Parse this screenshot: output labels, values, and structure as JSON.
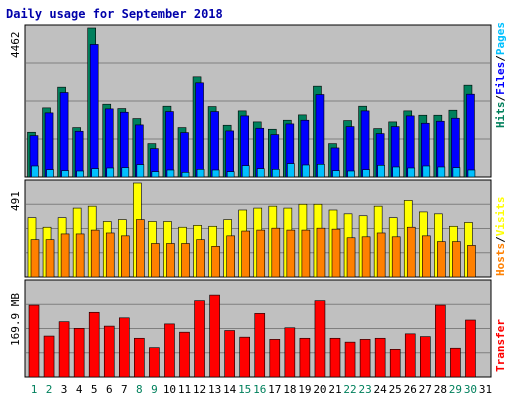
{
  "page_title": "Daily usage for September 2018",
  "labels": {
    "top_max": "4462",
    "mid_max": "491",
    "bot_max": "169.9 MB",
    "right_hits": "Hits",
    "right_files": "Files",
    "right_pages": "Pages",
    "right_sep": "/",
    "right_hosts": "Hosts",
    "right_visits": "Visits",
    "right_transfer": "Transfer"
  },
  "colors": {
    "hits": "#00805c",
    "files": "#0000ff",
    "pages": "#00c0ff",
    "visits": "#ffff00",
    "hosts": "#ff8000",
    "transfer": "#ff0000",
    "weekday": "#000000",
    "weekend": "#00805c",
    "panel_bg": "#c0c0c0",
    "title": "#0000aa"
  },
  "chart_data": [
    {
      "type": "bar",
      "title": "Daily usage for September 2018",
      "categories": [
        "1",
        "2",
        "3",
        "4",
        "5",
        "6",
        "7",
        "8",
        "9",
        "10",
        "11",
        "12",
        "13",
        "14",
        "15",
        "16",
        "17",
        "18",
        "19",
        "20",
        "21",
        "22",
        "23",
        "24",
        "25",
        "26",
        "27",
        "28",
        "29",
        "30",
        "31"
      ],
      "weekend_days": [
        1,
        2,
        8,
        9,
        15,
        16,
        22,
        23,
        29,
        30
      ],
      "ylim": [
        0,
        4462
      ],
      "series": [
        {
          "name": "Hits",
          "values": [
            1340,
            2070,
            2690,
            1480,
            4462,
            2180,
            2050,
            1750,
            1000,
            2120,
            1480,
            3000,
            2110,
            1550,
            1980,
            1650,
            1430,
            1700,
            1860,
            2720,
            1000,
            1690,
            2120,
            1450,
            1650,
            1980,
            1850,
            1850,
            2000,
            2750,
            null
          ]
        },
        {
          "name": "Files",
          "values": [
            1240,
            1920,
            2530,
            1370,
            3970,
            2040,
            1940,
            1560,
            850,
            1960,
            1330,
            2820,
            1960,
            1380,
            1830,
            1460,
            1270,
            1590,
            1700,
            2470,
            870,
            1510,
            1980,
            1300,
            1510,
            1830,
            1610,
            1670,
            1760,
            2480,
            null
          ]
        },
        {
          "name": "Pages",
          "values": [
            330,
            220,
            190,
            180,
            250,
            270,
            280,
            370,
            160,
            210,
            140,
            230,
            210,
            160,
            340,
            250,
            230,
            400,
            360,
            380,
            190,
            180,
            220,
            350,
            300,
            270,
            330,
            300,
            280,
            210,
            null
          ]
        }
      ]
    },
    {
      "type": "bar",
      "ylim": [
        0,
        491
      ],
      "series": [
        {
          "name": "Visits",
          "values": [
            310,
            260,
            310,
            360,
            370,
            290,
            300,
            491,
            290,
            290,
            260,
            270,
            265,
            300,
            350,
            360,
            370,
            360,
            380,
            380,
            350,
            330,
            320,
            370,
            310,
            400,
            340,
            330,
            265,
            285,
            null
          ]
        },
        {
          "name": "Hosts",
          "values": [
            195,
            195,
            225,
            225,
            245,
            230,
            215,
            300,
            175,
            175,
            175,
            195,
            160,
            215,
            240,
            245,
            255,
            245,
            245,
            255,
            250,
            205,
            210,
            230,
            210,
            260,
            215,
            185,
            185,
            165,
            null
          ]
        }
      ]
    },
    {
      "type": "bar",
      "ylim": [
        0,
        169.9
      ],
      "ylabel": "169.9 MB",
      "series": [
        {
          "name": "Transfer",
          "values": [
            130,
            74,
            100,
            88,
            117,
            92,
            107,
            70,
            53,
            96,
            81,
            138,
            148,
            84,
            72,
            115,
            68,
            89,
            70,
            138,
            70,
            63,
            68,
            70,
            50,
            78,
            73,
            130,
            52,
            103,
            null
          ]
        }
      ]
    }
  ]
}
